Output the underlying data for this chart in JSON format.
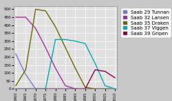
{
  "years": [
    1960,
    1965,
    1970,
    1975,
    1980,
    1985,
    1990,
    1995,
    2000,
    2005,
    2010
  ],
  "series": [
    {
      "name": "Saab 29 Tunnan",
      "color": "#7777cc",
      "values": [
        220,
        90,
        0,
        0,
        0,
        0,
        0,
        0,
        0,
        0,
        0
      ]
    },
    {
      "name": "Saab 32 Lansen",
      "color": "#993399",
      "values": [
        450,
        450,
        380,
        260,
        130,
        20,
        0,
        0,
        0,
        0,
        0
      ]
    },
    {
      "name": "Saab 35 Draken",
      "color": "#666600",
      "values": [
        20,
        120,
        500,
        490,
        390,
        260,
        130,
        10,
        0,
        0,
        0
      ]
    },
    {
      "name": "Saab 37 Viggen",
      "color": "#00aaaa",
      "values": [
        0,
        0,
        0,
        0,
        310,
        310,
        300,
        285,
        160,
        20,
        0
      ]
    },
    {
      "name": "Saab 39 Gripen",
      "color": "#880044",
      "values": [
        0,
        0,
        0,
        0,
        0,
        0,
        0,
        0,
        120,
        110,
        70
      ]
    }
  ],
  "ylim": [
    0,
    520
  ],
  "yticks": [
    0,
    50,
    100,
    150,
    200,
    250,
    300,
    350,
    400,
    450,
    500
  ],
  "bg_color": "#c8c8c8",
  "plot_bg": "#d8d8d8",
  "wall_color": "#e0e0e0",
  "floor_color": "#b8b8b8",
  "grid_color": "#ffffff",
  "legend_fontsize": 5.0,
  "tick_fontsize": 4.0,
  "line_width": 1.0
}
